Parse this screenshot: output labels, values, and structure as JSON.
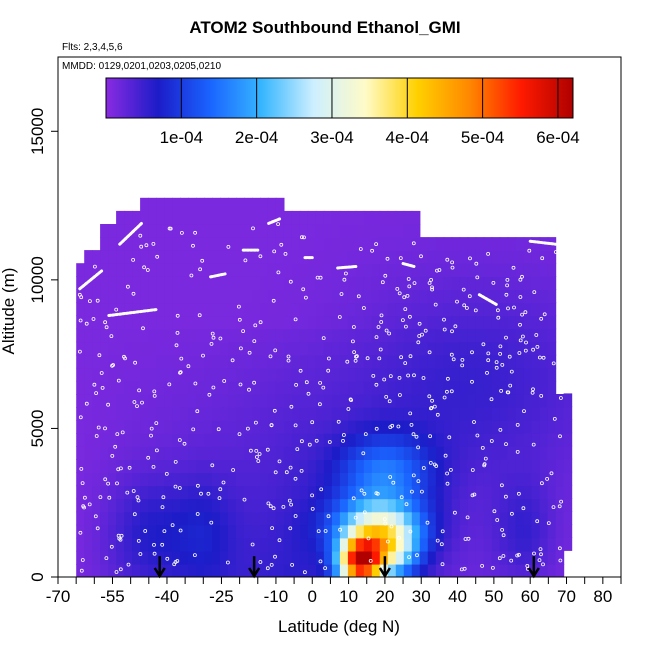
{
  "chart_data": {
    "type": "heatmap",
    "title": "ATOM2 Southbound Ethanol_GMI",
    "subtitle_flights": "Flts: 2,3,4,5,6",
    "subtitle_dates": "MMDD: 0129,0201,0203,0205,0210",
    "xlabel": "Latitude (deg N)",
    "ylabel": "Altitude (m)",
    "x_ticks": [
      -70,
      -55,
      -40,
      -25,
      -10,
      0,
      10,
      20,
      30,
      40,
      50,
      60,
      70,
      80
    ],
    "y_ticks": [
      0,
      5000,
      10000,
      15000
    ],
    "x_range": [
      -70,
      85
    ],
    "y_range": [
      0,
      17500
    ],
    "colorbar": {
      "ticks": [
        "1e-04",
        "2e-04",
        "3e-04",
        "4e-04",
        "5e-04",
        "6e-04"
      ],
      "tick_values": [
        0.0001,
        0.0002,
        0.0003,
        0.0004,
        0.0005,
        0.0006
      ],
      "range": [
        0,
        0.00062
      ],
      "colors": [
        "#8a2be2",
        "#1c1cc8",
        "#1a63ff",
        "#36b6ff",
        "#cdefff",
        "#fffbc8",
        "#ffd000",
        "#ff8800",
        "#ff1a00",
        "#b00000"
      ]
    },
    "arrows_latitude": [
      -42,
      -16,
      20,
      61
    ],
    "grid": false
  }
}
